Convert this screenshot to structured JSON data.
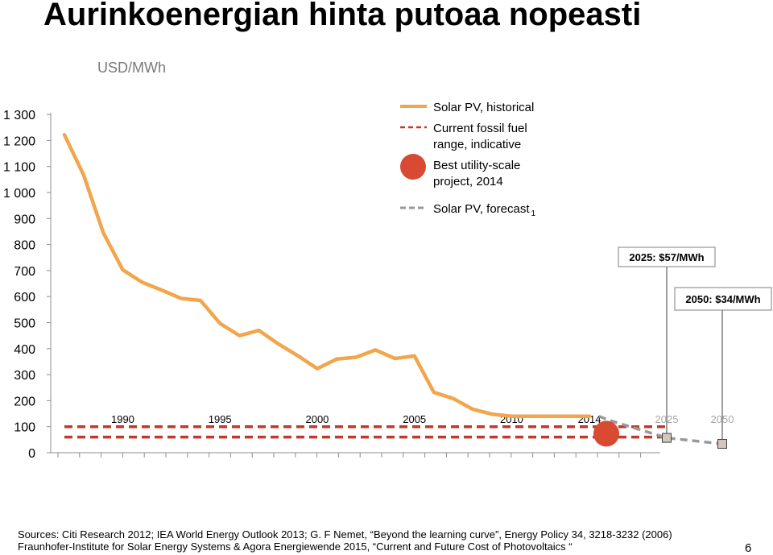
{
  "slide": {
    "title": "Aurinkoenergian hinta putoaa nopeasti",
    "unit": "USD/MWh",
    "source_line1": "Sources: Citi Research 2012; IEA World Energy Outlook 2013; G. F Nemet, “Beyond the learning curve”, Energy Policy 34, 3218-3232 (2006)",
    "source_line2": "Fraunhofer-Institute for Solar Energy Systems & Agora Energiewende  2015, “Current and Future Cost of Photovoltaics “",
    "page_number": "6"
  },
  "chart_data": {
    "type": "line",
    "title": "Aurinkoenergian hinta putoaa nopeasti",
    "ylabel": "USD/MWh",
    "ylim": [
      0,
      1300
    ],
    "yticks": [
      0,
      100,
      200,
      300,
      400,
      500,
      600,
      700,
      800,
      900,
      1000,
      1100,
      1200,
      1300
    ],
    "ytick_labels": [
      "0",
      "100",
      "200",
      "300",
      "400",
      "500",
      "600",
      "700",
      "800",
      "900",
      "1 000",
      "1 100",
      "1 200",
      "1 300"
    ],
    "year_labels": [
      {
        "year": 1990,
        "label": "1990",
        "muted": false
      },
      {
        "year": 1995,
        "label": "1995",
        "muted": false
      },
      {
        "year": 2000,
        "label": "2000",
        "muted": false
      },
      {
        "year": 2005,
        "label": "2005",
        "muted": false
      },
      {
        "year": 2010,
        "label": "2010",
        "muted": false
      },
      {
        "year": 2014,
        "label": "2014",
        "muted": false
      },
      {
        "year": 2025,
        "label": "2025",
        "muted": true
      },
      {
        "year": 2050,
        "label": "2050",
        "muted": true
      }
    ],
    "series": [
      {
        "name": "Solar PV, historical",
        "color": "#f2a54b",
        "style": "solid",
        "x": [
          1987,
          1988,
          1989,
          1990,
          1991,
          1992,
          1993,
          1994,
          1995,
          1996,
          1997,
          1998,
          1999,
          2000,
          2001,
          2002,
          2003,
          2004,
          2005,
          2006,
          2007,
          2008,
          2009,
          2010,
          2011,
          2012,
          2013,
          2014
        ],
        "y": [
          1222,
          1065,
          845,
          703,
          655,
          625,
          593,
          585,
          497,
          450,
          470,
          418,
          373,
          323,
          360,
          367,
          395,
          362,
          372,
          232,
          208,
          167,
          148,
          140,
          140,
          140,
          140,
          140
        ]
      },
      {
        "name": "Current fossil fuel range, indicative",
        "color": "#c0392b",
        "style": "dashed",
        "low": 60,
        "high": 100,
        "x_range": [
          1987,
          2025
        ]
      },
      {
        "name": "Best utility-scale project, 2014",
        "color": "#d94a32",
        "style": "marker",
        "x": [
          2015
        ],
        "y": 73
      },
      {
        "name": "Solar PV, forecast",
        "legend_subscript": "1",
        "color": "#999999",
        "style": "dashed",
        "x": [
          2015,
          2016,
          2025,
          2050
        ],
        "y": [
          140,
          125,
          57,
          34
        ]
      }
    ],
    "annotations": [
      {
        "label": "2025: $57/MWh",
        "year": 2025,
        "value": 57
      },
      {
        "label": "2050: $34/MWh",
        "year": 2050,
        "value": 34
      }
    ],
    "legend_position": "top-center"
  }
}
